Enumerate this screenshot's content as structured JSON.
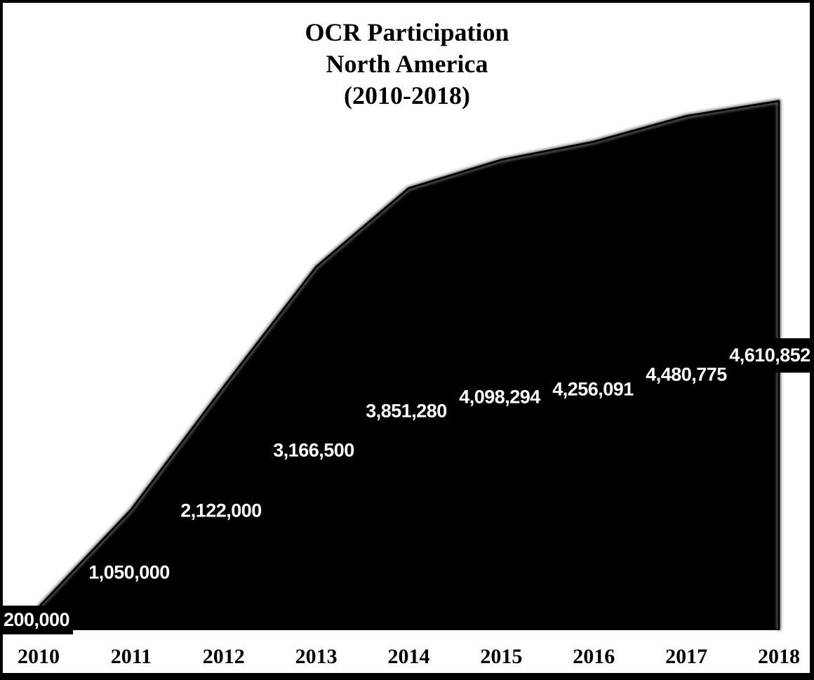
{
  "title": {
    "lines": [
      "OCR Participation",
      "North America",
      "(2010-2018)"
    ]
  },
  "chart_data": {
    "type": "area",
    "title": "OCR Participation North America (2010-2018)",
    "categories": [
      "2010",
      "2011",
      "2012",
      "2013",
      "2014",
      "2015",
      "2016",
      "2017",
      "2018"
    ],
    "series": [
      {
        "name": "OCR Participation",
        "values": [
          200000,
          1050000,
          2122000,
          3166500,
          3851280,
          4098294,
          4256091,
          4480775,
          4610852
        ]
      }
    ],
    "data_labels": [
      "200,000",
      "1,050,000",
      "2,122,000",
      "3,166,500",
      "3,851,280",
      "4,098,294",
      "4,256,091",
      "4,480,775",
      "4,610,852"
    ],
    "xlabel": "",
    "ylabel": "",
    "ylim": [
      0,
      4610852
    ],
    "grid": false,
    "legend": "none",
    "colors": {
      "area_fill": "#000000",
      "edge_glow": "#6e6e6e",
      "baseline_shadow": "#999999",
      "data_label_text": "#ffffff",
      "label_box_fill": "#000000",
      "axis_text": "#000000",
      "background": "#ffffff",
      "frame_border": "#000000"
    }
  }
}
